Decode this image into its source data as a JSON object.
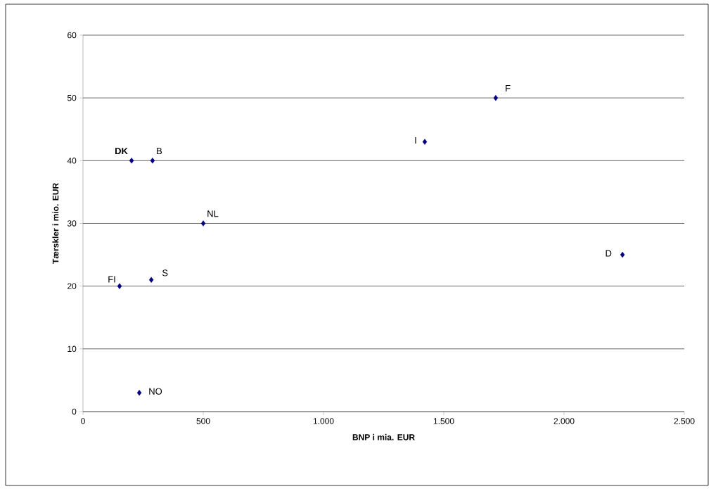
{
  "chart_data": {
    "type": "scatter",
    "xlabel": "BNP i mia. EUR",
    "ylabel": "Tærskler i mio. EUR",
    "x": [
      202,
      289,
      500,
      152,
      284,
      234,
      1421,
      1716,
      2243
    ],
    "values": [
      40,
      40,
      30,
      20,
      21,
      3,
      43,
      50,
      25
    ],
    "color": "#000080",
    "marker": "diamond",
    "xlim": [
      0,
      2500
    ],
    "xticks": [
      0,
      500,
      {
        "value": 1000,
        "label": "1.000"
      },
      {
        "value": 1500,
        "label": "1.500"
      },
      {
        "value": 2000,
        "label": "2.000"
      },
      {
        "value": 2500,
        "label": "2.500"
      }
    ],
    "ylim": [
      0,
      60
    ],
    "yticks": [
      0,
      10,
      20,
      30,
      40,
      50,
      60
    ],
    "grid": "y",
    "annotations": [
      {
        "text": "**DK**",
        "x": 202,
        "y": 40
      },
      {
        "text": "B",
        "x": 289,
        "y": 40
      },
      {
        "text": "NL",
        "x": 500,
        "y": 30
      },
      {
        "text": "FI",
        "x": 152,
        "y": 20
      },
      {
        "text": "S",
        "x": 284,
        "y": 21
      },
      {
        "text": "NO",
        "x": 234,
        "y": 3
      },
      {
        "text": "I",
        "x": 1421,
        "y": 43
      },
      {
        "text": "F",
        "x": 1716,
        "y": 50
      },
      {
        "text": "D",
        "x": 2243,
        "y": 25
      }
    ]
  }
}
